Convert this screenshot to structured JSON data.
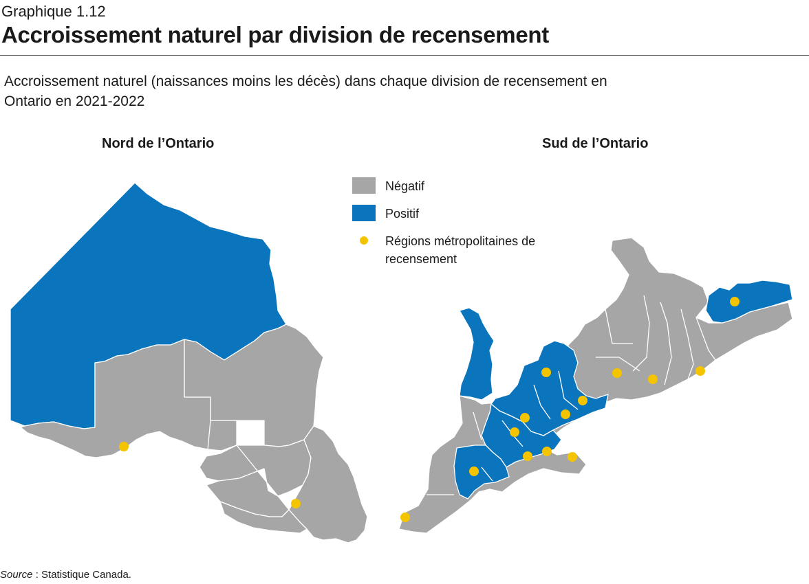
{
  "header": {
    "kicker": "Graphique 1.12",
    "title": "Accroissement naturel par division de recensement",
    "subtitle": "Accroissement naturel (naissances moins les décès) dans chaque division de recensement en Ontario en 2021-2022"
  },
  "panels": {
    "north": "Nord de l’Ontario",
    "south": "Sud de l’Ontario"
  },
  "legend": {
    "negative": "Négatif",
    "positive": "Positif",
    "cma": "Régions métropolitaines de recensement"
  },
  "colors": {
    "negative": "#a6a6a6",
    "positive": "#0a74bc",
    "cma": "#f5c400",
    "border": "#ffffff"
  },
  "source": {
    "label": "Source",
    "text": " : Statistique Canada."
  }
}
